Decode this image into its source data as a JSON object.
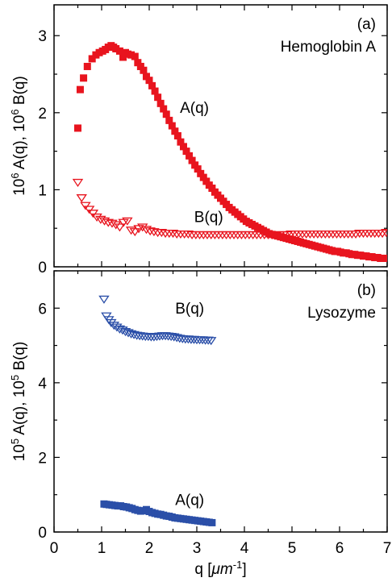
{
  "chart_data": [
    {
      "type": "scatter",
      "panel_label": "(a)",
      "sample": "Hemoglobin A",
      "ylabel_prefix": "10",
      "ylabel_exp": "6",
      "ylabel_mid": " A(q), 10",
      "ylabel_exp2": "6",
      "ylabel_suffix": " B(q)",
      "xlim": [
        0,
        7
      ],
      "ylim": [
        0,
        3.4
      ],
      "yticks": [
        "0",
        "1",
        "2",
        "3"
      ],
      "series": [
        {
          "name": "A(q)",
          "marker": "square",
          "color": "#e8141e",
          "x": [
            0.5,
            0.55,
            0.62,
            0.7,
            0.8,
            0.88,
            0.95,
            1.02,
            1.08,
            1.14,
            1.2,
            1.25,
            1.3,
            1.38,
            1.45,
            1.5,
            1.55,
            1.62,
            1.7,
            1.76,
            1.82,
            1.88,
            1.94,
            2.0,
            2.06,
            2.12,
            2.18,
            2.24,
            2.3,
            2.36,
            2.42,
            2.48,
            2.54,
            2.6,
            2.66,
            2.72,
            2.78,
            2.84,
            2.9,
            2.96,
            3.02,
            3.08,
            3.14,
            3.2,
            3.26,
            3.32,
            3.38,
            3.44,
            3.5,
            3.56,
            3.62,
            3.68,
            3.74,
            3.8,
            3.86,
            3.92,
            3.98,
            4.04,
            4.1,
            4.16,
            4.22,
            4.28,
            4.34,
            4.4,
            4.46,
            4.52,
            4.58,
            4.64,
            4.7,
            4.76,
            4.82,
            4.88,
            4.94,
            5.0,
            5.06,
            5.12,
            5.18,
            5.24,
            5.3,
            5.36,
            5.42,
            5.48,
            5.54,
            5.6,
            5.66,
            5.72,
            5.78,
            5.84,
            5.9,
            5.96,
            6.02,
            6.08,
            6.14,
            6.2,
            6.26,
            6.32,
            6.38,
            6.44,
            6.5,
            6.56,
            6.62,
            6.68,
            6.74,
            6.8,
            6.86,
            6.92,
            6.98
          ],
          "y": [
            1.8,
            2.3,
            2.45,
            2.6,
            2.7,
            2.75,
            2.78,
            2.8,
            2.82,
            2.85,
            2.87,
            2.85,
            2.83,
            2.8,
            2.72,
            2.78,
            2.76,
            2.75,
            2.73,
            2.65,
            2.6,
            2.55,
            2.47,
            2.42,
            2.35,
            2.28,
            2.2,
            2.12,
            2.05,
            1.98,
            1.9,
            1.83,
            1.76,
            1.7,
            1.62,
            1.56,
            1.5,
            1.44,
            1.38,
            1.32,
            1.27,
            1.21,
            1.16,
            1.11,
            1.06,
            1.02,
            0.97,
            0.93,
            0.89,
            0.85,
            0.81,
            0.77,
            0.74,
            0.71,
            0.68,
            0.65,
            0.62,
            0.59,
            0.57,
            0.55,
            0.53,
            0.51,
            0.49,
            0.47,
            0.45,
            0.43,
            0.42,
            0.41,
            0.4,
            0.39,
            0.38,
            0.37,
            0.36,
            0.35,
            0.34,
            0.33,
            0.32,
            0.31,
            0.3,
            0.29,
            0.28,
            0.27,
            0.26,
            0.25,
            0.24,
            0.23,
            0.22,
            0.21,
            0.2,
            0.2,
            0.19,
            0.18,
            0.18,
            0.17,
            0.16,
            0.16,
            0.15,
            0.15,
            0.14,
            0.14,
            0.13,
            0.13,
            0.12,
            0.12,
            0.11,
            0.11,
            0.11
          ]
        },
        {
          "name": "B(q)",
          "marker": "triangle-down",
          "color": "#e8141e",
          "x": [
            0.5,
            0.58,
            0.66,
            0.74,
            0.82,
            0.9,
            0.98,
            1.06,
            1.14,
            1.22,
            1.3,
            1.38,
            1.46,
            1.54,
            1.62,
            1.7,
            1.78,
            1.86,
            1.94,
            2.02,
            2.1,
            2.18,
            2.26,
            2.34,
            2.42,
            2.5,
            2.58,
            2.66,
            2.74,
            2.82,
            2.9,
            2.98,
            3.06,
            3.14,
            3.22,
            3.3,
            3.38,
            3.46,
            3.54,
            3.62,
            3.7,
            3.78,
            3.86,
            3.94,
            4.02,
            4.1,
            4.18,
            4.26,
            4.34,
            4.42,
            4.5,
            4.58,
            4.66,
            4.74,
            4.82,
            4.9,
            4.98,
            5.06,
            5.14,
            5.22,
            5.3,
            5.38,
            5.46,
            5.54,
            5.62,
            5.7,
            5.78,
            5.86,
            5.94,
            6.02,
            6.1,
            6.18,
            6.26,
            6.34,
            6.42,
            6.5,
            6.58,
            6.66,
            6.74,
            6.82,
            6.9,
            6.98
          ],
          "y": [
            1.1,
            0.9,
            0.8,
            0.75,
            0.7,
            0.65,
            0.62,
            0.6,
            0.58,
            0.57,
            0.55,
            0.52,
            0.58,
            0.6,
            0.48,
            0.46,
            0.5,
            0.52,
            0.49,
            0.47,
            0.46,
            0.45,
            0.45,
            0.44,
            0.44,
            0.44,
            0.43,
            0.43,
            0.43,
            0.43,
            0.42,
            0.42,
            0.42,
            0.42,
            0.42,
            0.42,
            0.42,
            0.42,
            0.42,
            0.42,
            0.42,
            0.42,
            0.42,
            0.42,
            0.42,
            0.42,
            0.42,
            0.42,
            0.42,
            0.42,
            0.42,
            0.42,
            0.42,
            0.42,
            0.42,
            0.42,
            0.43,
            0.43,
            0.43,
            0.43,
            0.43,
            0.43,
            0.43,
            0.43,
            0.43,
            0.43,
            0.43,
            0.43,
            0.43,
            0.43,
            0.43,
            0.43,
            0.43,
            0.43,
            0.44,
            0.44,
            0.44,
            0.44,
            0.44,
            0.44,
            0.44,
            0.45
          ]
        }
      ]
    },
    {
      "type": "scatter",
      "panel_label": "(b)",
      "sample": "Lysozyme",
      "ylabel_prefix": "10",
      "ylabel_exp": "5",
      "ylabel_mid": " A(q), 10",
      "ylabel_exp2": "5",
      "ylabel_suffix": " B(q)",
      "xlabel_main": "q [",
      "xlabel_mu": "μm",
      "xlabel_exp": "-1",
      "xlabel_end": "]",
      "xlim": [
        0,
        7
      ],
      "xticks": [
        "0",
        "1",
        "2",
        "3",
        "4",
        "5",
        "6",
        "7"
      ],
      "ylim": [
        0,
        7
      ],
      "yticks": [
        "0",
        "2",
        "4",
        "6"
      ],
      "series": [
        {
          "name": "B(q)",
          "marker": "triangle-down",
          "color": "#2b4fa8",
          "x": [
            1.05,
            1.1,
            1.15,
            1.2,
            1.26,
            1.32,
            1.38,
            1.44,
            1.5,
            1.56,
            1.62,
            1.68,
            1.74,
            1.8,
            1.86,
            1.92,
            1.98,
            2.04,
            2.1,
            2.16,
            2.22,
            2.28,
            2.34,
            2.4,
            2.46,
            2.52,
            2.58,
            2.64,
            2.7,
            2.76,
            2.82,
            2.88,
            2.94,
            3.0,
            3.06,
            3.12,
            3.18,
            3.24,
            3.3
          ],
          "y": [
            6.25,
            5.8,
            5.7,
            5.62,
            5.55,
            5.5,
            5.45,
            5.42,
            5.38,
            5.35,
            5.32,
            5.3,
            5.28,
            5.27,
            5.26,
            5.25,
            5.25,
            5.24,
            5.24,
            5.25,
            5.26,
            5.27,
            5.27,
            5.26,
            5.25,
            5.24,
            5.22,
            5.2,
            5.19,
            5.18,
            5.18,
            5.17,
            5.17,
            5.16,
            5.16,
            5.16,
            5.15,
            5.15,
            5.14
          ]
        },
        {
          "name": "A(q)",
          "marker": "square",
          "color": "#2b4fa8",
          "x": [
            1.05,
            1.1,
            1.16,
            1.22,
            1.28,
            1.34,
            1.4,
            1.46,
            1.52,
            1.58,
            1.64,
            1.7,
            1.76,
            1.82,
            1.88,
            1.94,
            2.0,
            2.06,
            2.12,
            2.18,
            2.24,
            2.3,
            2.36,
            2.42,
            2.48,
            2.54,
            2.6,
            2.66,
            2.72,
            2.78,
            2.84,
            2.9,
            2.96,
            3.02,
            3.08,
            3.14,
            3.2,
            3.26,
            3.32
          ],
          "y": [
            0.75,
            0.74,
            0.73,
            0.72,
            0.71,
            0.7,
            0.7,
            0.68,
            0.67,
            0.65,
            0.63,
            0.6,
            0.58,
            0.56,
            0.57,
            0.6,
            0.55,
            0.52,
            0.5,
            0.48,
            0.47,
            0.45,
            0.43,
            0.42,
            0.4,
            0.38,
            0.37,
            0.36,
            0.35,
            0.34,
            0.33,
            0.32,
            0.31,
            0.3,
            0.29,
            0.28,
            0.27,
            0.26,
            0.25
          ]
        }
      ]
    }
  ]
}
